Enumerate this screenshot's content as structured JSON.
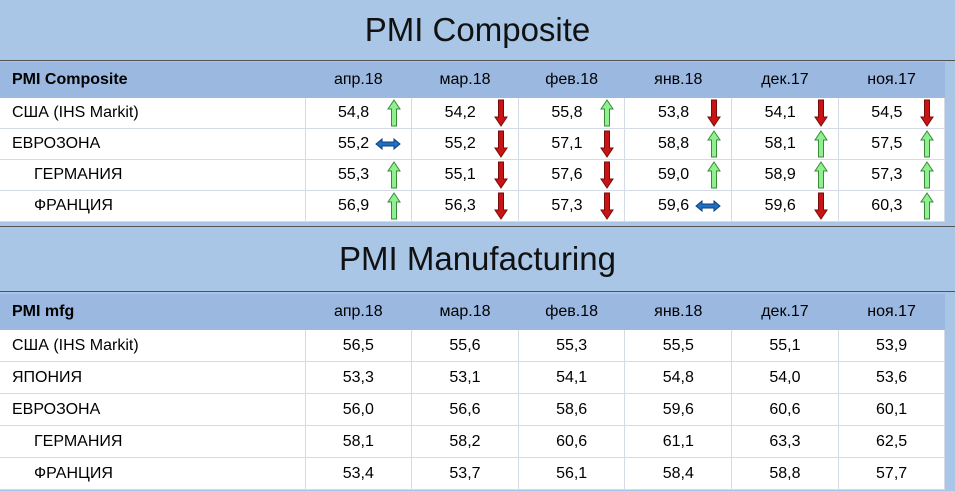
{
  "colors": {
    "up": "#8ff08f",
    "down": "#c81414",
    "flat": "#1f6fc2",
    "header_bg": "#9ab8e0",
    "title_bg": "#a9c6e6"
  },
  "composite": {
    "title": "PMI Composite",
    "header_label": "PMI Composite",
    "columns": [
      "апр.18",
      "мар.18",
      "фев.18",
      "янв.18",
      "дек.17",
      "ноя.17"
    ],
    "rows": [
      {
        "label": "США (IHS Markit)",
        "indent": false,
        "values": [
          "54,8",
          "54,2",
          "55,8",
          "53,8",
          "54,1",
          "54,5"
        ],
        "trend": [
          "up",
          "down",
          "up",
          "down",
          "down",
          "down"
        ]
      },
      {
        "label": "ЕВРОЗОНА",
        "indent": false,
        "values": [
          "55,2",
          "55,2",
          "57,1",
          "58,8",
          "58,1",
          "57,5"
        ],
        "trend": [
          "flat",
          "down",
          "down",
          "up",
          "up",
          "up"
        ]
      },
      {
        "label": "ГЕРМАНИЯ",
        "indent": true,
        "values": [
          "55,3",
          "55,1",
          "57,6",
          "59,0",
          "58,9",
          "57,3"
        ],
        "trend": [
          "up",
          "down",
          "down",
          "up",
          "up",
          "up"
        ]
      },
      {
        "label": "ФРАНЦИЯ",
        "indent": true,
        "values": [
          "56,9",
          "56,3",
          "57,3",
          "59,6",
          "59,6",
          "60,3"
        ],
        "trend": [
          "up",
          "down",
          "down",
          "flat",
          "down",
          "up"
        ]
      }
    ]
  },
  "manufacturing": {
    "title": "PMI Manufacturing",
    "header_label": "PMI mfg",
    "columns": [
      "апр.18",
      "мар.18",
      "фев.18",
      "янв.18",
      "дек.17",
      "ноя.17"
    ],
    "rows": [
      {
        "label": "США (IHS Markit)",
        "indent": false,
        "values": [
          "56,5",
          "55,6",
          "55,3",
          "55,5",
          "55,1",
          "53,9"
        ]
      },
      {
        "label": "ЯПОНИЯ",
        "indent": false,
        "values": [
          "53,3",
          "53,1",
          "54,1",
          "54,8",
          "54,0",
          "53,6"
        ]
      },
      {
        "label": "ЕВРОЗОНА",
        "indent": false,
        "values": [
          "56,0",
          "56,6",
          "58,6",
          "59,6",
          "60,6",
          "60,1"
        ]
      },
      {
        "label": "ГЕРМАНИЯ",
        "indent": true,
        "values": [
          "58,1",
          "58,2",
          "60,6",
          "61,1",
          "63,3",
          "62,5"
        ]
      },
      {
        "label": "ФРАНЦИЯ",
        "indent": true,
        "values": [
          "53,4",
          "53,7",
          "56,1",
          "58,4",
          "58,8",
          "57,7"
        ]
      }
    ]
  }
}
